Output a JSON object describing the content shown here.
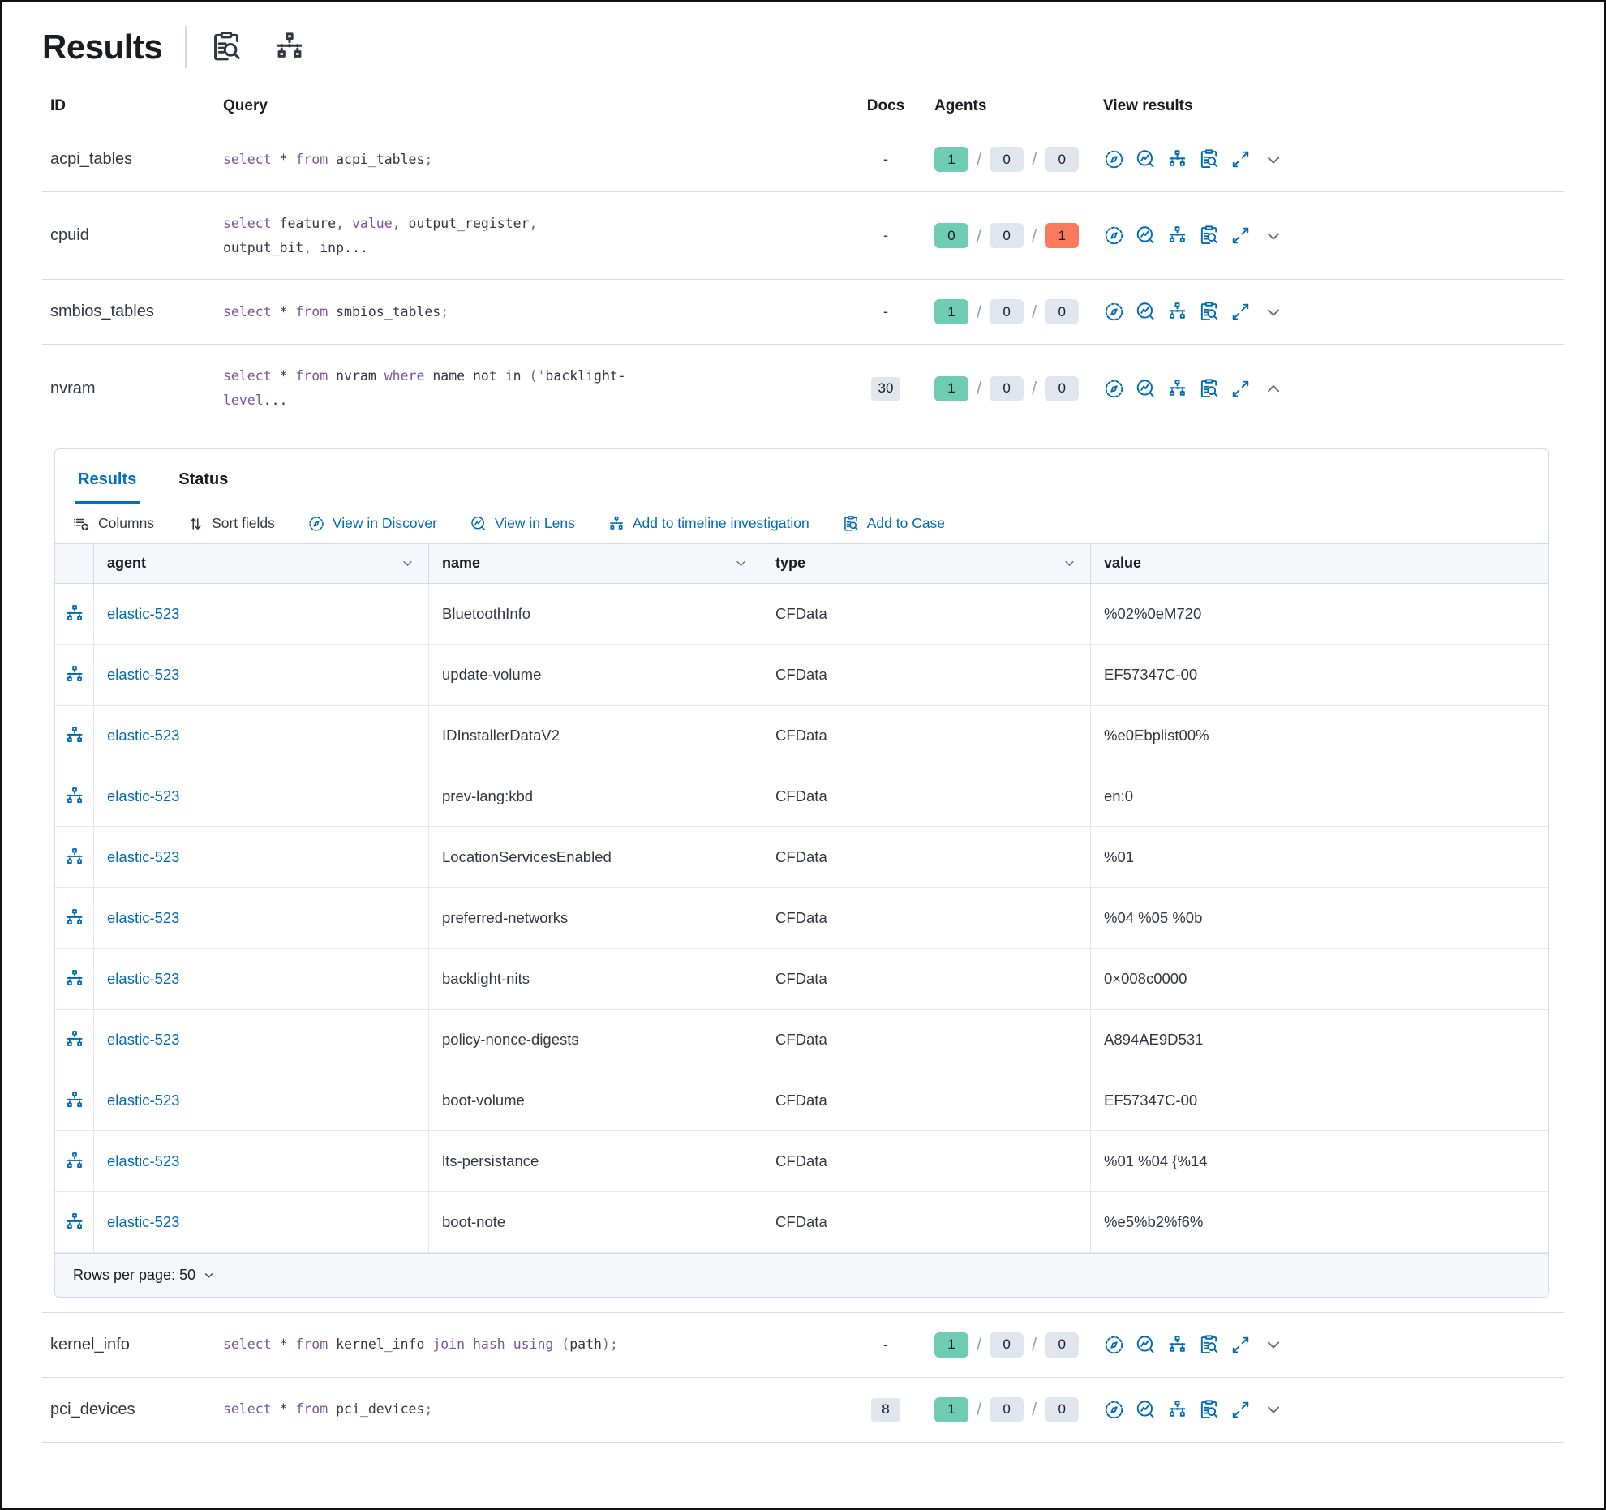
{
  "page": {
    "title": "Results"
  },
  "header_icons": [
    "add-to-case-icon",
    "timeline-icon"
  ],
  "results_table": {
    "columns": {
      "id": "ID",
      "query": "Query",
      "docs": "Docs",
      "agents": "Agents",
      "view": "View results"
    },
    "view_results_icons": [
      "discover-icon",
      "lens-icon",
      "timeline-icon",
      "add-to-case-icon",
      "expand-icon",
      "chevron-icon"
    ],
    "colors": {
      "success_badge": "#6DCCB1",
      "danger_badge": "#FB7A5E",
      "neutral_badge": "#E0E5EE",
      "link_blue": "#006BB4",
      "sql_keyword": "#7C54A0"
    },
    "rows": [
      {
        "id": "acpi_tables",
        "query": "select * from acpi_tables;",
        "docs": "-",
        "docs_badge": false,
        "expanded": false,
        "agents": [
          {
            "value": "1",
            "status": "success"
          },
          {
            "value": "0",
            "status": "neutral"
          },
          {
            "value": "0",
            "status": "neutral"
          }
        ]
      },
      {
        "id": "cpuid",
        "query": "select feature, value, output_register, output_bit, inp...",
        "docs": "-",
        "docs_badge": false,
        "expanded": false,
        "agents": [
          {
            "value": "0",
            "status": "success"
          },
          {
            "value": "0",
            "status": "neutral"
          },
          {
            "value": "1",
            "status": "danger"
          }
        ]
      },
      {
        "id": "smbios_tables",
        "query": "select * from smbios_tables;",
        "docs": "-",
        "docs_badge": false,
        "expanded": false,
        "agents": [
          {
            "value": "1",
            "status": "success"
          },
          {
            "value": "0",
            "status": "neutral"
          },
          {
            "value": "0",
            "status": "neutral"
          }
        ]
      },
      {
        "id": "nvram",
        "query": "select * from nvram where name not in ('backlight-level...",
        "docs": "30",
        "docs_badge": true,
        "expanded": true,
        "agents": [
          {
            "value": "1",
            "status": "success"
          },
          {
            "value": "0",
            "status": "neutral"
          },
          {
            "value": "0",
            "status": "neutral"
          }
        ]
      },
      {
        "id": "kernel_info",
        "query": "select * from kernel_info join hash using (path);",
        "docs": "-",
        "docs_badge": false,
        "expanded": false,
        "agents": [
          {
            "value": "1",
            "status": "success"
          },
          {
            "value": "0",
            "status": "neutral"
          },
          {
            "value": "0",
            "status": "neutral"
          }
        ]
      },
      {
        "id": "pci_devices",
        "query": "select * from pci_devices;",
        "docs": "8",
        "docs_badge": true,
        "expanded": false,
        "agents": [
          {
            "value": "1",
            "status": "success"
          },
          {
            "value": "0",
            "status": "neutral"
          },
          {
            "value": "0",
            "status": "neutral"
          }
        ]
      }
    ]
  },
  "expanded_panel": {
    "tabs": [
      {
        "label": "Results",
        "active": true
      },
      {
        "label": "Status",
        "active": false
      }
    ],
    "toolbar": {
      "columns_label": "Columns",
      "sort_label": "Sort fields",
      "discover_label": "View in Discover",
      "lens_label": "View in Lens",
      "timeline_label": "Add to timeline investigation",
      "case_label": "Add to Case"
    },
    "grid": {
      "columns": [
        "agent",
        "name",
        "type",
        "value"
      ],
      "rows": [
        {
          "agent": "elastic-523",
          "name": "BluetoothInfo",
          "type": "CFData",
          "value": "%02%0eM720"
        },
        {
          "agent": "elastic-523",
          "name": "update-volume",
          "type": "CFData",
          "value": "EF57347C-00"
        },
        {
          "agent": "elastic-523",
          "name": "IDInstallerDataV2",
          "type": "CFData",
          "value": "%e0Ebplist00%"
        },
        {
          "agent": "elastic-523",
          "name": "prev-lang:kbd",
          "type": "CFData",
          "value": "en:0"
        },
        {
          "agent": "elastic-523",
          "name": "LocationServicesEnabled",
          "type": "CFData",
          "value": "%01"
        },
        {
          "agent": "elastic-523",
          "name": "preferred-networks",
          "type": "CFData",
          "value": "%04 %05 %0b"
        },
        {
          "agent": "elastic-523",
          "name": "backlight-nits",
          "type": "CFData",
          "value": "0×008c0000"
        },
        {
          "agent": "elastic-523",
          "name": "policy-nonce-digests",
          "type": "CFData",
          "value": "A894AE9D531"
        },
        {
          "agent": "elastic-523",
          "name": "boot-volume",
          "type": "CFData",
          "value": "EF57347C-00"
        },
        {
          "agent": "elastic-523",
          "name": "lts-persistance",
          "type": "CFData",
          "value": "%01 %04 {%14"
        },
        {
          "agent": "elastic-523",
          "name": "boot-note",
          "type": "CFData",
          "value": "%e5%b2%f6%"
        }
      ]
    },
    "footer": {
      "rows_per_page_label": "Rows per page: 50"
    }
  }
}
